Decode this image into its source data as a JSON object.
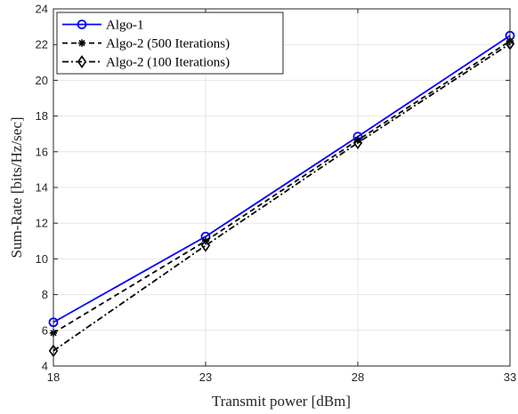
{
  "chart_data": {
    "type": "line",
    "xlabel": "Transmit power [dBm]",
    "ylabel": "Sum-Rate [bits/Hz/sec]",
    "xlim": [
      18,
      33
    ],
    "ylim": [
      4,
      24
    ],
    "xticks": [
      18,
      23,
      28,
      33
    ],
    "yticks": [
      4,
      6,
      8,
      10,
      12,
      14,
      16,
      18,
      20,
      22,
      24
    ],
    "grid": true,
    "legend_position": "top-left",
    "x": [
      18,
      23,
      28,
      33
    ],
    "series": [
      {
        "name": "Algo-1",
        "values": [
          6.45,
          11.25,
          16.85,
          22.5
        ],
        "color": "#0000ff",
        "dash": "solid",
        "marker": "circle"
      },
      {
        "name": "Algo-2 (500 Iterations)",
        "values": [
          5.85,
          11.0,
          16.65,
          22.2
        ],
        "color": "#000000",
        "dash": "dashed",
        "marker": "asterisk"
      },
      {
        "name": "Algo-2 (100 Iterations)",
        "values": [
          4.85,
          10.75,
          16.5,
          22.05
        ],
        "color": "#000000",
        "dash": "dashdot",
        "marker": "diamond"
      }
    ]
  }
}
